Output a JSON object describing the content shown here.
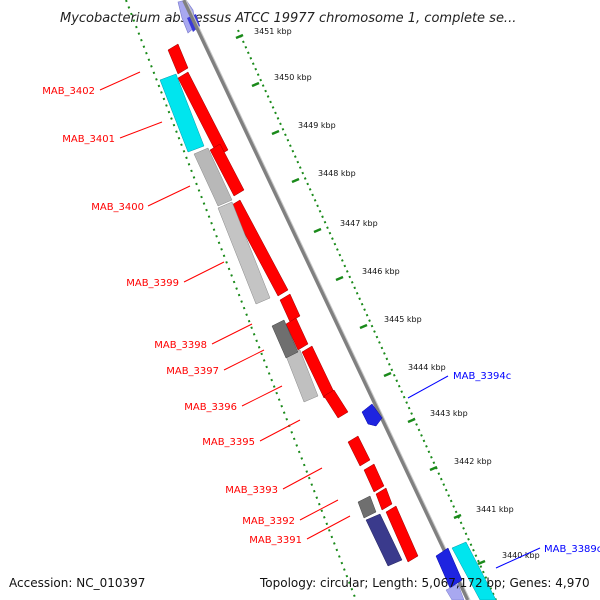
{
  "title": "Mycobacterium abscessus ATCC 19977 chromosome 1, complete se...",
  "footer": {
    "accession": "Accession: NC_010397",
    "topology": "Topology: circular; Length: 5,067,172 bp; Genes: 4,970"
  },
  "colors": {
    "forward": "#ff0000",
    "reverse": "#0000ff",
    "cyan": "#00e5ee",
    "gray": "#b8b8b8",
    "dark_gray": "#6f6f6f",
    "navy": "#3a3a8c",
    "scale": "#1a8a1a",
    "backbone": "#808080"
  },
  "scale_ticks": [
    {
      "kbp": 3451,
      "label": "3451 kbp"
    },
    {
      "kbp": 3450,
      "label": "3450 kbp"
    },
    {
      "kbp": 3449,
      "label": "3449 kbp"
    },
    {
      "kbp": 3448,
      "label": "3448 kbp"
    },
    {
      "kbp": 3447,
      "label": "3447 kbp"
    },
    {
      "kbp": 3446,
      "label": "3446 kbp"
    },
    {
      "kbp": 3445,
      "label": "3445 kbp"
    },
    {
      "kbp": 3444,
      "label": "3444 kbp"
    },
    {
      "kbp": 3443,
      "label": "3443 kbp"
    },
    {
      "kbp": 3442,
      "label": "3442 kbp"
    },
    {
      "kbp": 3441,
      "label": "3441 kbp"
    },
    {
      "kbp": 3440,
      "label": "3440 kbp"
    }
  ],
  "gene_labels": [
    {
      "name": "MAB_3402",
      "strand": "forward"
    },
    {
      "name": "MAB_3401",
      "strand": "forward"
    },
    {
      "name": "MAB_3400",
      "strand": "forward"
    },
    {
      "name": "MAB_3399",
      "strand": "forward"
    },
    {
      "name": "MAB_3398",
      "strand": "forward"
    },
    {
      "name": "MAB_3397",
      "strand": "forward"
    },
    {
      "name": "MAB_3396",
      "strand": "forward"
    },
    {
      "name": "MAB_3395",
      "strand": "forward"
    },
    {
      "name": "MAB_3393",
      "strand": "forward"
    },
    {
      "name": "MAB_3392",
      "strand": "forward"
    },
    {
      "name": "MAB_3391",
      "strand": "forward"
    },
    {
      "name": "MAB_3394c",
      "strand": "reverse"
    },
    {
      "name": "MAB_3389c",
      "strand": "reverse"
    }
  ]
}
